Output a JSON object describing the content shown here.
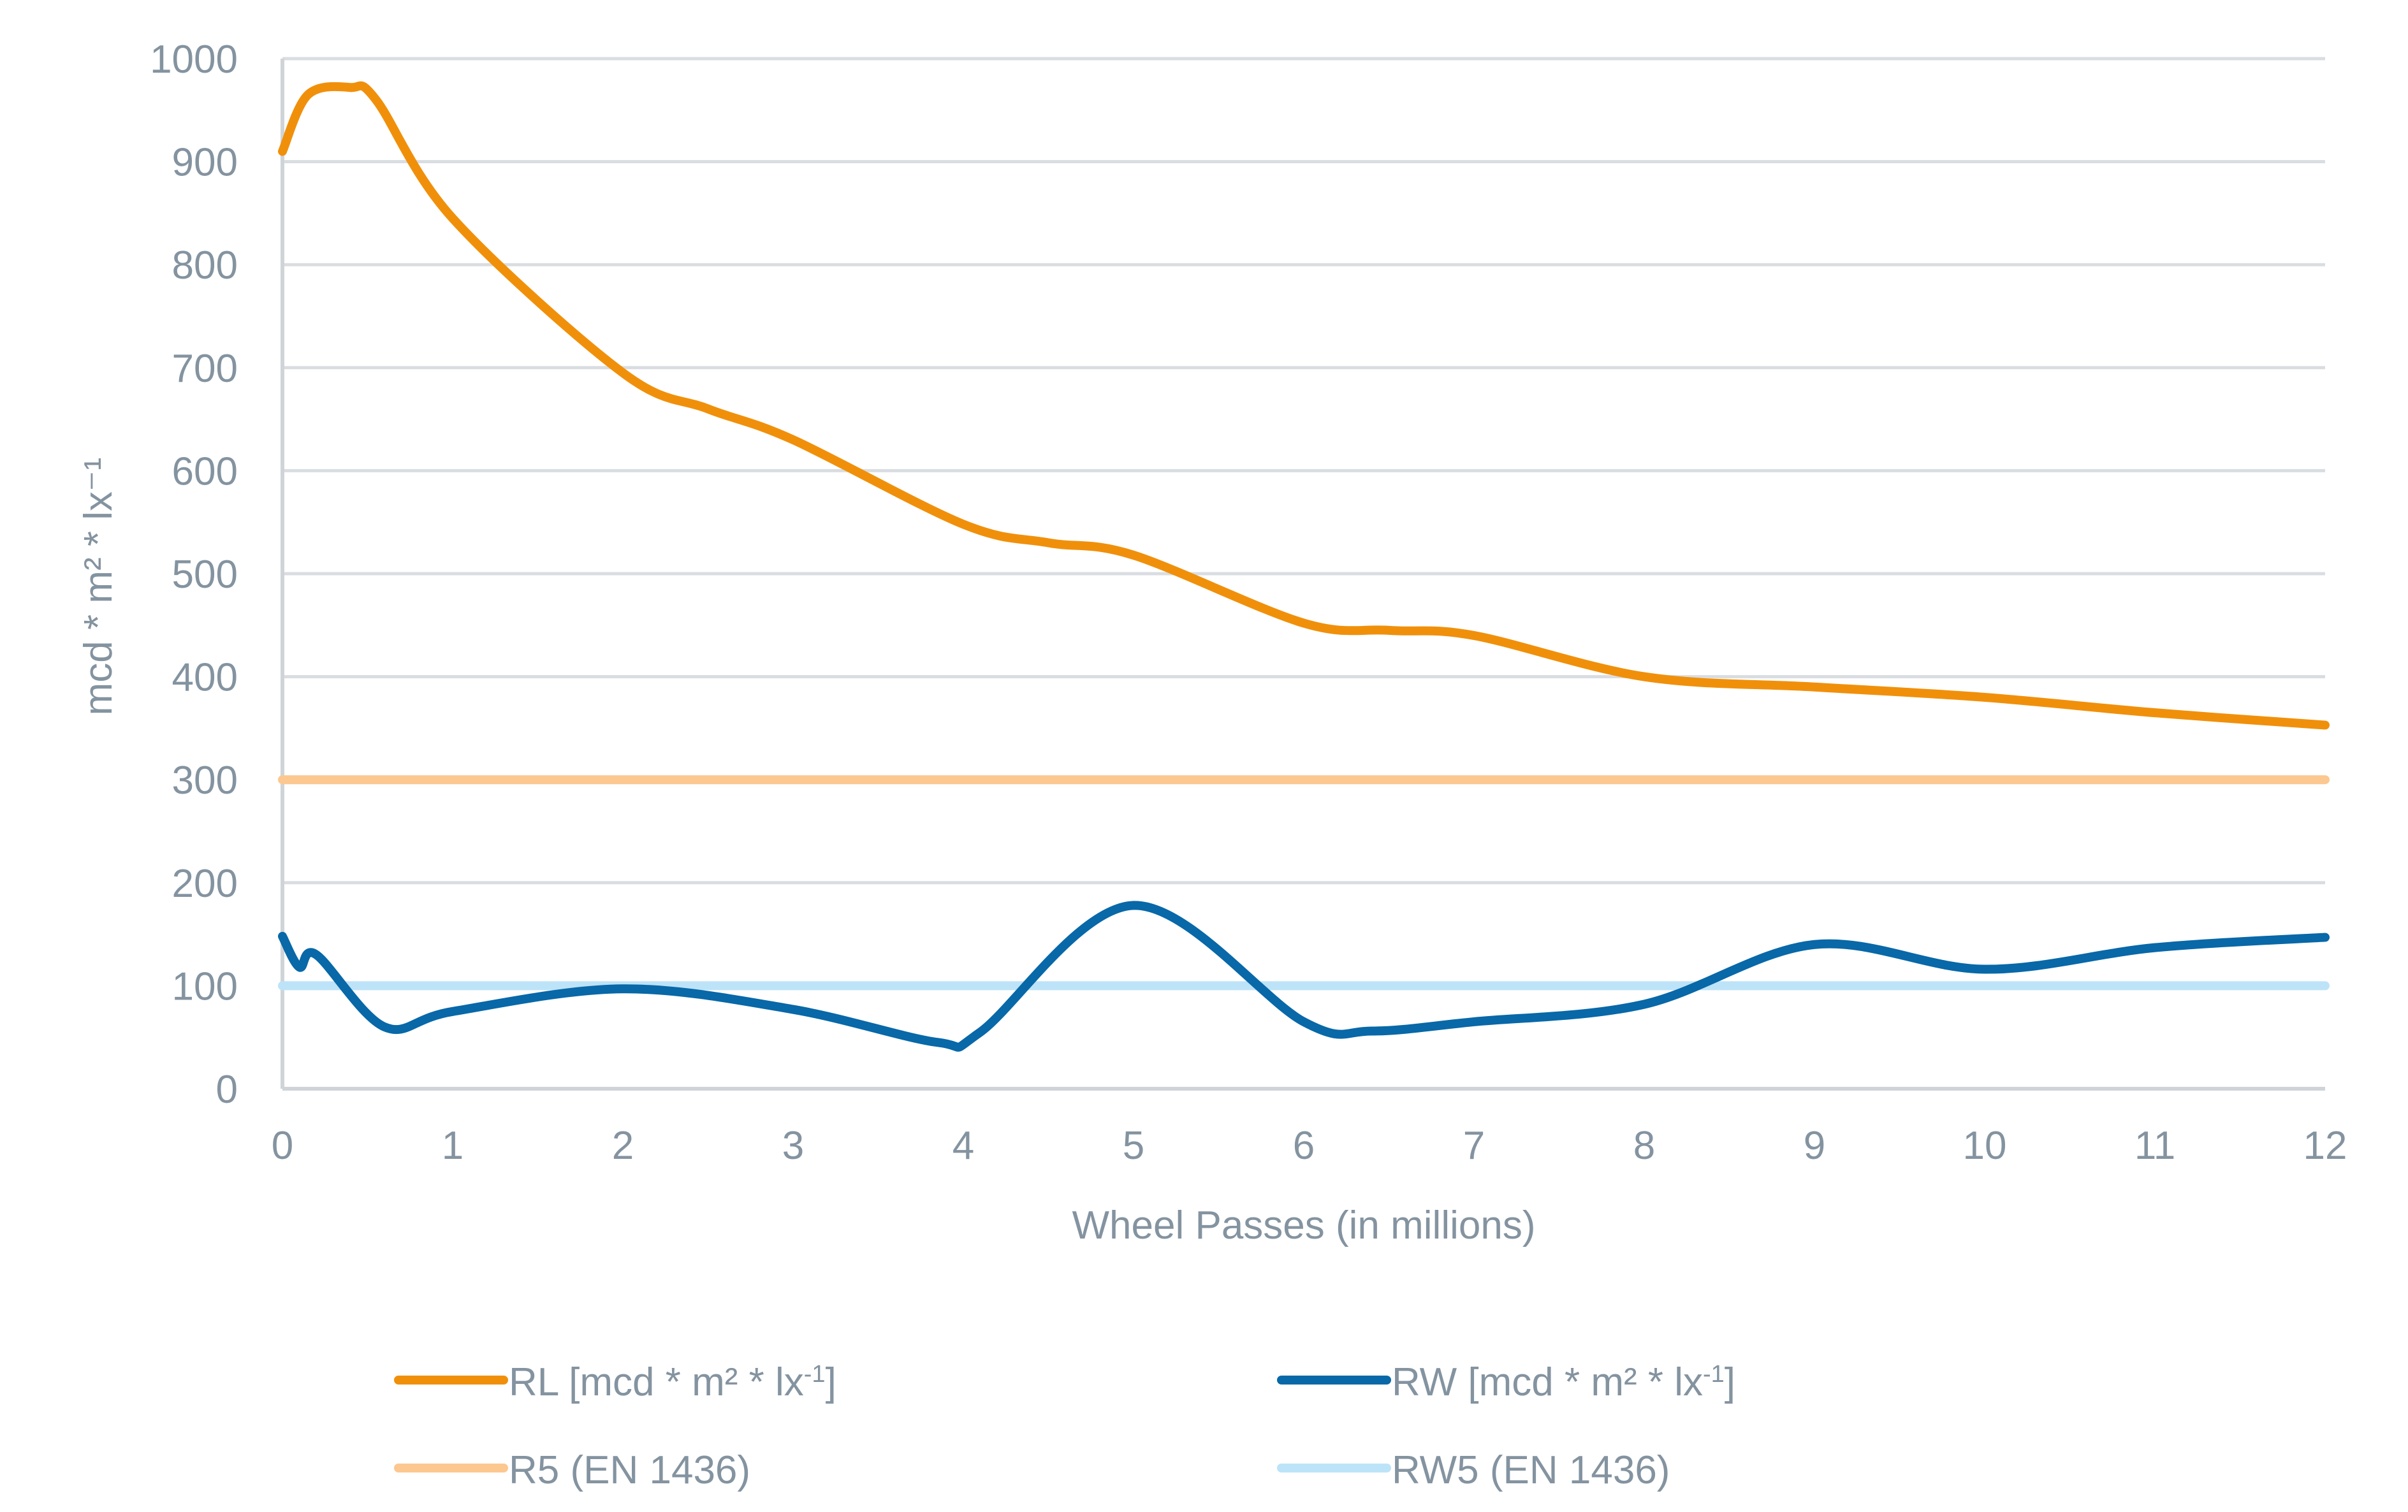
{
  "chart_data": {
    "type": "line",
    "title": "",
    "xlabel": "Wheel Passes (in millions)",
    "ylabel": "mcd * m² * lx⁻¹",
    "xlim": [
      0,
      12
    ],
    "ylim": [
      0,
      1000
    ],
    "x_ticks": [
      0,
      1,
      2,
      3,
      4,
      5,
      6,
      7,
      8,
      9,
      10,
      11,
      12
    ],
    "y_ticks": [
      0,
      100,
      200,
      300,
      400,
      500,
      600,
      700,
      800,
      900,
      1000
    ],
    "grid": "horizontal",
    "legend_position": "bottom",
    "series": [
      {
        "name": "RL [mcd * m² * lx⁻¹]",
        "color": "#f0900a",
        "smooth": true,
        "x": [
          0,
          0.15,
          0.4,
          0.55,
          1,
          2,
          2.5,
          3,
          4,
          4.5,
          5,
          6,
          6.5,
          7,
          8,
          9,
          10,
          11,
          12
        ],
        "values": [
          910,
          965,
          972,
          960,
          845,
          695,
          660,
          630,
          548,
          530,
          518,
          452,
          445,
          440,
          400,
          390,
          380,
          365,
          353
        ]
      },
      {
        "name": "RW [mcd * m² * lx⁻¹]",
        "color": "#0868a8",
        "smooth": true,
        "x": [
          0,
          0.1,
          0.2,
          0.6,
          1,
          2,
          3,
          3.85,
          4.1,
          5,
          6,
          6.4,
          7,
          8,
          9,
          10,
          11,
          12
        ],
        "values": [
          148,
          118,
          130,
          60,
          75,
          97,
          77,
          45,
          55,
          178,
          65,
          56,
          65,
          82,
          140,
          116,
          137,
          147
        ]
      },
      {
        "name": "R5 (EN 1436)",
        "color": "#fcc890",
        "smooth": false,
        "x": [
          0,
          12
        ],
        "values": [
          300,
          300
        ]
      },
      {
        "name": "RW5 (EN 1436)",
        "color": "#bde3f8",
        "smooth": false,
        "x": [
          0,
          12
        ],
        "values": [
          100,
          100
        ]
      }
    ],
    "legend": [
      {
        "label_main": "RL [mcd * m² * lx",
        "label_sup": "-1",
        "label_end": "]"
      },
      {
        "label_main": "RW [mcd * m² * lx",
        "label_sup": "-1",
        "label_end": "]"
      },
      {
        "label_main": "R5 (EN 1436)",
        "label_sup": "",
        "label_end": ""
      },
      {
        "label_main": "RW5 (EN 1436)",
        "label_sup": "",
        "label_end": ""
      }
    ],
    "colors": {
      "grid": "#d9dde1",
      "axis": "#cfd4d8",
      "text": "#8493a0"
    }
  }
}
